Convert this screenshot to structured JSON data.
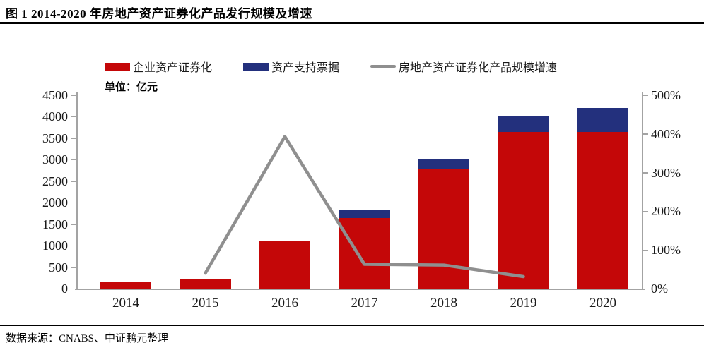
{
  "header": {
    "title": "图 1 2014-2020 年房地产资产证券化产品发行规模及增速"
  },
  "unit_label": "单位：亿元",
  "legend": [
    {
      "label": "企业资产证券化",
      "type": "bar",
      "color": "#c40708"
    },
    {
      "label": "资产支持票据",
      "type": "bar",
      "color": "#23307d"
    },
    {
      "label": "房地产资产证券化产品规模增速",
      "type": "line",
      "color": "#8f8f8f"
    }
  ],
  "footer": {
    "source": "数据来源：CNABS、中证鹏元整理"
  },
  "chart_data": {
    "type": "bar",
    "subtype": "stacked-bars-with-line",
    "title": "图 1 2014-2020 年房地产资产证券化产品发行规模及增速",
    "categories": [
      "2014",
      "2015",
      "2016",
      "2017",
      "2018",
      "2019",
      "2020"
    ],
    "series": [
      {
        "name": "企业资产证券化",
        "type": "bar",
        "axis": "left",
        "color": "#c40708",
        "values": [
          165,
          230,
          1120,
          1650,
          2800,
          3640,
          3640
        ]
      },
      {
        "name": "资产支持票据",
        "type": "bar",
        "axis": "left",
        "color": "#23307d",
        "values": [
          0,
          0,
          0,
          180,
          230,
          380,
          560
        ]
      },
      {
        "name": "房地产资产证券化产品规模增速",
        "type": "line",
        "axis": "right",
        "color": "#8f8f8f",
        "values": [
          null,
          40,
          393,
          63,
          61,
          31,
          null
        ]
      }
    ],
    "left_axis": {
      "label": "单位：亿元",
      "min": 0,
      "max": 4500,
      "ticks": [
        0,
        500,
        1000,
        1500,
        2000,
        2500,
        3000,
        3500,
        4000,
        4500
      ]
    },
    "right_axis": {
      "unit": "%",
      "min": 0,
      "max": 500,
      "ticks": [
        "0%",
        "100%",
        "200%",
        "300%",
        "400%",
        "500%"
      ]
    },
    "legend_position": "top",
    "grid": false,
    "axis_color": "#a3a3a3"
  }
}
